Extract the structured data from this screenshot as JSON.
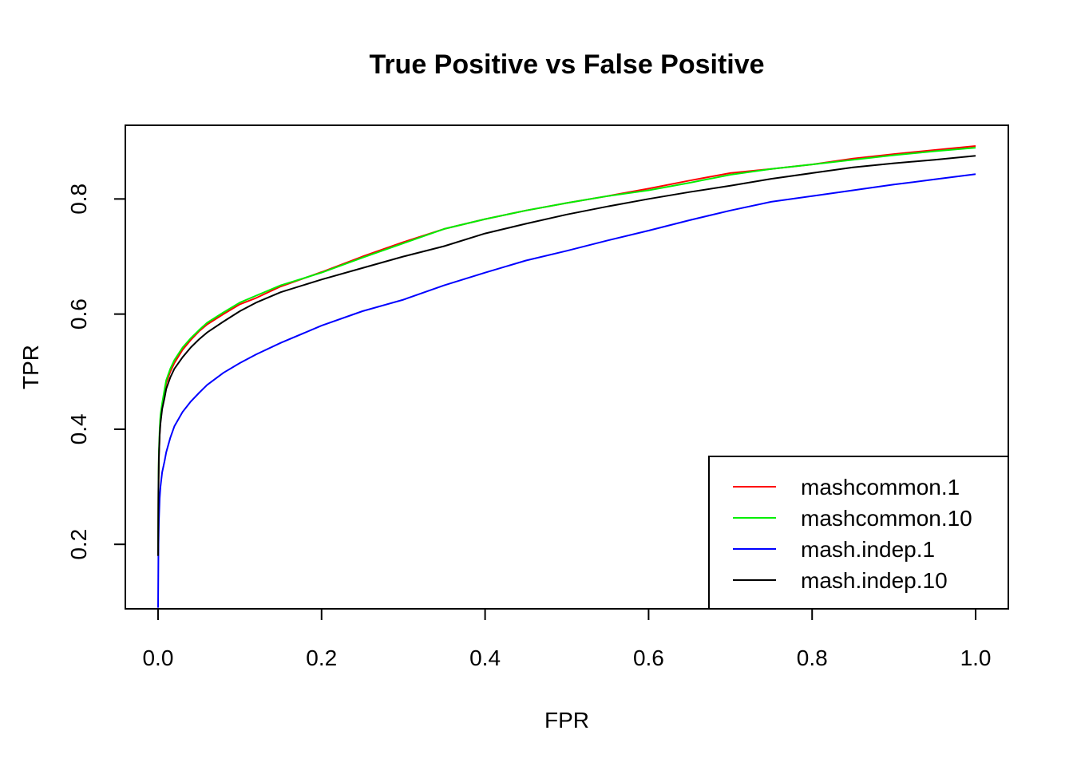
{
  "chart_data": {
    "type": "line",
    "title": "True Positive vs False Positive",
    "xlabel": "FPR",
    "ylabel": "TPR",
    "xlim": [
      -0.04,
      1.04
    ],
    "ylim": [
      0.088,
      0.928
    ],
    "x_ticks": [
      0.0,
      0.2,
      0.4,
      0.6,
      0.8,
      1.0
    ],
    "x_tick_labels": [
      "0.0",
      "0.2",
      "0.4",
      "0.6",
      "0.8",
      "1.0"
    ],
    "y_ticks": [
      0.2,
      0.4,
      0.6,
      0.8
    ],
    "y_tick_labels": [
      "0.2",
      "0.4",
      "0.6",
      "0.8"
    ],
    "grid": false,
    "legend_position": "bottom-right",
    "series": [
      {
        "name": "mashcommon.1",
        "color": "#ff0000",
        "x": [
          0,
          0.0005,
          0.001,
          0.002,
          0.003,
          0.005,
          0.008,
          0.01,
          0.015,
          0.02,
          0.03,
          0.04,
          0.05,
          0.06,
          0.08,
          0.1,
          0.12,
          0.15,
          0.2,
          0.25,
          0.3,
          0.35,
          0.4,
          0.45,
          0.5,
          0.55,
          0.6,
          0.65,
          0.7,
          0.75,
          0.8,
          0.85,
          0.9,
          0.95,
          1.0
        ],
        "y": [
          0.18,
          0.3,
          0.35,
          0.39,
          0.42,
          0.44,
          0.465,
          0.48,
          0.5,
          0.515,
          0.538,
          0.555,
          0.57,
          0.582,
          0.6,
          0.617,
          0.628,
          0.648,
          0.673,
          0.7,
          0.725,
          0.748,
          0.765,
          0.78,
          0.793,
          0.805,
          0.818,
          0.832,
          0.845,
          0.852,
          0.86,
          0.87,
          0.878,
          0.885,
          0.892
        ]
      },
      {
        "name": "mashcommon.10",
        "color": "#00ee00",
        "x": [
          0,
          0.0005,
          0.001,
          0.002,
          0.003,
          0.005,
          0.008,
          0.01,
          0.015,
          0.02,
          0.03,
          0.04,
          0.05,
          0.06,
          0.08,
          0.1,
          0.12,
          0.15,
          0.2,
          0.25,
          0.3,
          0.35,
          0.4,
          0.45,
          0.5,
          0.55,
          0.6,
          0.65,
          0.7,
          0.75,
          0.8,
          0.85,
          0.9,
          0.95,
          1.0
        ],
        "y": [
          0.18,
          0.31,
          0.36,
          0.4,
          0.425,
          0.445,
          0.47,
          0.485,
          0.505,
          0.52,
          0.542,
          0.558,
          0.572,
          0.585,
          0.603,
          0.62,
          0.632,
          0.65,
          0.672,
          0.698,
          0.723,
          0.748,
          0.765,
          0.78,
          0.793,
          0.805,
          0.815,
          0.828,
          0.842,
          0.852,
          0.86,
          0.868,
          0.876,
          0.883,
          0.889
        ]
      },
      {
        "name": "mash.indep.1",
        "color": "#0000ff",
        "x": [
          0,
          0.0005,
          0.001,
          0.002,
          0.003,
          0.005,
          0.008,
          0.01,
          0.015,
          0.02,
          0.03,
          0.04,
          0.05,
          0.06,
          0.08,
          0.1,
          0.12,
          0.15,
          0.2,
          0.25,
          0.3,
          0.35,
          0.4,
          0.45,
          0.5,
          0.55,
          0.6,
          0.65,
          0.7,
          0.75,
          0.8,
          0.85,
          0.9,
          0.95,
          1.0
        ],
        "y": [
          0.09,
          0.2,
          0.24,
          0.28,
          0.3,
          0.325,
          0.345,
          0.36,
          0.385,
          0.405,
          0.43,
          0.448,
          0.463,
          0.477,
          0.498,
          0.515,
          0.53,
          0.55,
          0.58,
          0.605,
          0.625,
          0.65,
          0.672,
          0.693,
          0.71,
          0.728,
          0.745,
          0.763,
          0.78,
          0.795,
          0.805,
          0.815,
          0.825,
          0.834,
          0.843
        ]
      },
      {
        "name": "mash.indep.10",
        "color": "#000000",
        "x": [
          0,
          0.0005,
          0.001,
          0.002,
          0.003,
          0.005,
          0.008,
          0.01,
          0.015,
          0.02,
          0.03,
          0.04,
          0.05,
          0.06,
          0.08,
          0.1,
          0.12,
          0.15,
          0.2,
          0.25,
          0.3,
          0.35,
          0.4,
          0.45,
          0.5,
          0.55,
          0.6,
          0.65,
          0.7,
          0.75,
          0.8,
          0.85,
          0.9,
          0.95,
          1.0
        ],
        "y": [
          0.18,
          0.3,
          0.35,
          0.39,
          0.41,
          0.435,
          0.455,
          0.47,
          0.49,
          0.505,
          0.525,
          0.542,
          0.556,
          0.568,
          0.587,
          0.605,
          0.62,
          0.638,
          0.66,
          0.68,
          0.7,
          0.718,
          0.74,
          0.757,
          0.773,
          0.787,
          0.8,
          0.812,
          0.823,
          0.835,
          0.845,
          0.855,
          0.862,
          0.868,
          0.875
        ]
      }
    ]
  }
}
